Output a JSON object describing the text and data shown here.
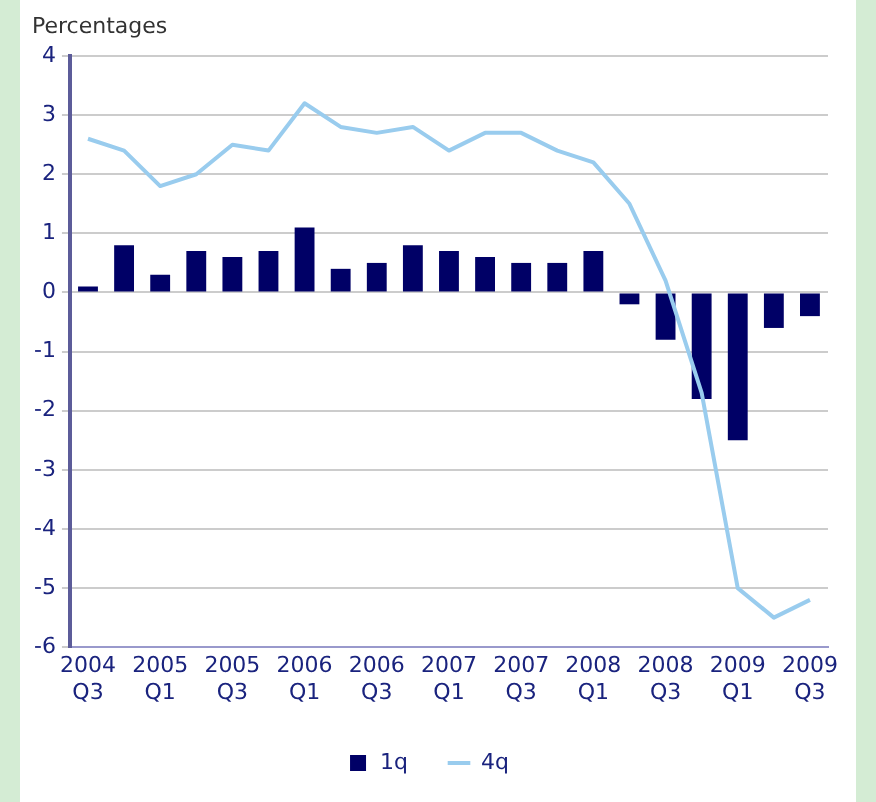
{
  "chart_data": {
    "type": "bar",
    "ylabel": "Percentages",
    "categories": [
      "2004 Q3",
      null,
      "2005 Q1",
      null,
      "2005 Q3",
      null,
      "2006 Q1",
      null,
      "2006 Q3",
      null,
      "2007 Q1",
      null,
      "2007 Q3",
      null,
      "2008 Q1",
      null,
      "2008 Q3",
      null,
      "2009 Q1",
      null,
      "2009 Q3"
    ],
    "series": [
      {
        "name": "1q",
        "color": "#000066",
        "values": [
          0.1,
          0.8,
          0.3,
          0.7,
          0.6,
          0.7,
          1.1,
          0.4,
          0.5,
          0.8,
          0.7,
          0.6,
          0.5,
          0.5,
          0.7,
          -0.2,
          -0.8,
          -1.8,
          -2.5,
          -0.6,
          -0.4
        ]
      },
      {
        "name": "4q",
        "type": "line",
        "color": "#99ccee",
        "values": [
          2.6,
          2.4,
          1.8,
          2.0,
          2.5,
          2.4,
          3.2,
          2.8,
          2.7,
          2.8,
          2.4,
          2.7,
          2.7,
          2.4,
          2.2,
          1.5,
          0.2,
          -1.7,
          -5.0,
          -5.5,
          -5.2
        ]
      }
    ],
    "ylim": [
      -6,
      4
    ],
    "yticks": [
      -6,
      -5,
      -4,
      -3,
      -2,
      -1,
      0,
      1,
      2,
      3,
      4
    ],
    "grid": "y",
    "legend": "bottom",
    "marker": "none"
  }
}
